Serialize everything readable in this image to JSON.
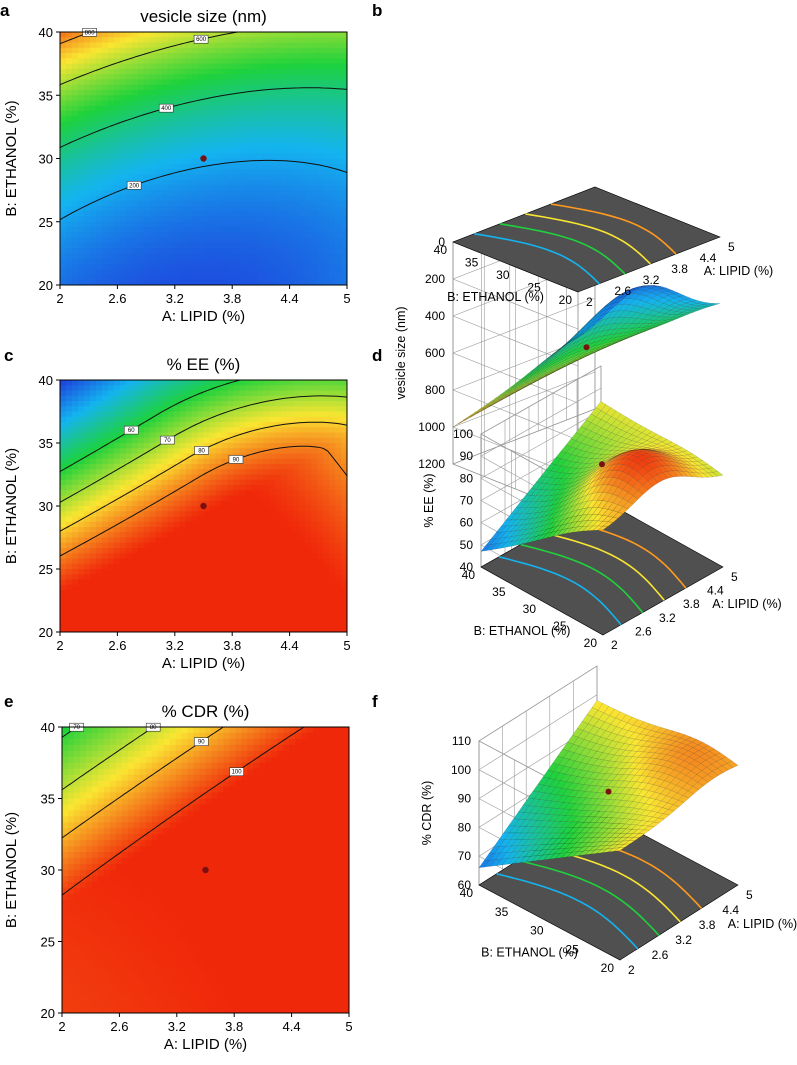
{
  "colors": {
    "low": "#1e3cdc",
    "mid_low": "#14b4f0",
    "mid": "#1ed23c",
    "mid_high": "#fae632",
    "high": "#f0280a",
    "floor": "#505050",
    "design_point": "#7a1010"
  },
  "chart_data": [
    {
      "id": "a",
      "panel_label": "a",
      "type": "contour",
      "title": "vesicle size (nm)",
      "xlabel": "A: LIPID (%)",
      "ylabel": "B: ETHANOL (%)",
      "xlim": [
        2,
        5
      ],
      "ylim": [
        20,
        40
      ],
      "xticks": [
        "2",
        "2.6",
        "3.2",
        "3.8",
        "4.4",
        "5"
      ],
      "yticks": [
        "20",
        "25",
        "30",
        "35",
        "40"
      ],
      "color_direction": "higher values toward upper-left",
      "contour_levels": [
        200,
        400,
        600,
        800
      ],
      "design_point": {
        "lipid": 3.5,
        "ethanol": 30
      }
    },
    {
      "id": "b",
      "panel_label": "b",
      "type": "surface3d",
      "zlabel": "vesicle size (nm)",
      "xlabel": "A: LIPID (%)",
      "ylabel": "B: ETHANOL (%)",
      "zlim": [
        0,
        1200
      ],
      "zticks": [
        "0",
        "200",
        "400",
        "600",
        "800",
        "1000",
        "1200"
      ],
      "xticks": [
        "2",
        "2.6",
        "3.2",
        "3.8",
        "4.4",
        "5"
      ],
      "yticks": [
        "20",
        "25",
        "30",
        "35",
        "40"
      ],
      "corner_values": {
        "lipid2_ethanol40": 1000,
        "lipid5_ethanol40": 870,
        "lipid2_ethanol20": 280,
        "lipid5_ethanol20": 380
      },
      "minimum": {
        "lipid": 3.4,
        "ethanol": 22,
        "value": 150
      }
    },
    {
      "id": "c",
      "panel_label": "c",
      "type": "contour",
      "title": "% EE (%)",
      "xlabel": "A: LIPID (%)",
      "ylabel": "B: ETHANOL (%)",
      "xlim": [
        2,
        5
      ],
      "ylim": [
        20,
        40
      ],
      "xticks": [
        "2",
        "2.6",
        "3.2",
        "3.8",
        "4.4",
        "5"
      ],
      "yticks": [
        "20",
        "25",
        "30",
        "35",
        "40"
      ],
      "color_direction": "higher values toward lower-center-right",
      "contour_levels": [
        60,
        70,
        80,
        90
      ],
      "design_point": {
        "lipid": 3.5,
        "ethanol": 30
      }
    },
    {
      "id": "d",
      "panel_label": "d",
      "type": "surface3d",
      "zlabel": "% EE (%)",
      "xlabel": "A: LIPID (%)",
      "ylabel": "B: ETHANOL (%)",
      "zlim": [
        40,
        100
      ],
      "zticks": [
        "40",
        "50",
        "60",
        "70",
        "80",
        "90",
        "100"
      ],
      "xticks": [
        "2",
        "2.6",
        "3.2",
        "3.8",
        "4.4",
        "5"
      ],
      "yticks": [
        "20",
        "25",
        "30",
        "35",
        "40"
      ],
      "corner_values": {
        "lipid2_ethanol40": 47,
        "lipid5_ethanol40": 84,
        "lipid2_ethanol20": 86,
        "lipid5_ethanol20": 80
      },
      "maximum": {
        "lipid": 3.5,
        "ethanol": 25,
        "value": 98
      }
    },
    {
      "id": "e",
      "panel_label": "e",
      "type": "contour",
      "title": "% CDR (%)",
      "xlabel": "A: LIPID (%)",
      "ylabel": "B: ETHANOL (%)",
      "xlim": [
        2,
        5
      ],
      "ylim": [
        20,
        40
      ],
      "xticks": [
        "2",
        "2.6",
        "3.2",
        "3.8",
        "4.4",
        "5"
      ],
      "yticks": [
        "20",
        "25",
        "30",
        "35",
        "40"
      ],
      "color_direction": "higher values toward lower-right",
      "contour_levels": [
        70,
        80,
        90,
        100
      ],
      "design_point": {
        "lipid": 3.5,
        "ethanol": 30
      }
    },
    {
      "id": "f",
      "panel_label": "f",
      "type": "surface3d",
      "zlabel": "% CDR (%)",
      "xlabel": "A: LIPID (%)",
      "ylabel": "B: ETHANOL (%)",
      "zlim": [
        60,
        110
      ],
      "zticks": [
        "60",
        "70",
        "80",
        "90",
        "100",
        "110"
      ],
      "xticks": [
        "2",
        "2.6",
        "3.2",
        "3.8",
        "4.4",
        "5"
      ],
      "yticks": [
        "20",
        "25",
        "30",
        "35",
        "40"
      ],
      "corner_values": {
        "lipid2_ethanol40": 66,
        "lipid5_ethanol40": 98,
        "lipid2_ethanol20": 98,
        "lipid5_ethanol20": 99
      },
      "maximum": {
        "lipid": 4.4,
        "ethanol": 25,
        "value": 103
      }
    }
  ]
}
